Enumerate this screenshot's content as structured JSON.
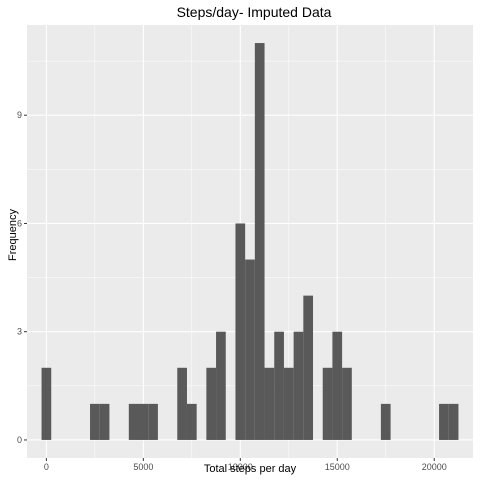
{
  "chart_data": {
    "type": "bar",
    "title": "Steps/day- Imputed Data",
    "xlabel": "Total steps per day",
    "ylabel": "Frequency",
    "xlim": [
      -1000,
      22000
    ],
    "ylim": [
      -0.5,
      11.5
    ],
    "x_ticks": [
      0,
      5000,
      10000,
      15000,
      20000
    ],
    "x_tick_labels": [
      "0",
      "5000",
      "10000",
      "15000",
      "20000"
    ],
    "y_ticks": [
      0,
      3,
      6,
      9
    ],
    "y_tick_labels": [
      "0",
      "3",
      "6",
      "9"
    ],
    "bin_width": 500,
    "bins": [
      {
        "x0": -250,
        "count": 2
      },
      {
        "x0": 2250,
        "count": 1
      },
      {
        "x0": 2750,
        "count": 1
      },
      {
        "x0": 4250,
        "count": 1
      },
      {
        "x0": 4750,
        "count": 1
      },
      {
        "x0": 5250,
        "count": 1
      },
      {
        "x0": 6750,
        "count": 2
      },
      {
        "x0": 7250,
        "count": 1
      },
      {
        "x0": 8250,
        "count": 2
      },
      {
        "x0": 8750,
        "count": 3
      },
      {
        "x0": 9750,
        "count": 6
      },
      {
        "x0": 10250,
        "count": 5
      },
      {
        "x0": 10750,
        "count": 11
      },
      {
        "x0": 11250,
        "count": 2
      },
      {
        "x0": 11750,
        "count": 3
      },
      {
        "x0": 12250,
        "count": 2
      },
      {
        "x0": 12750,
        "count": 3
      },
      {
        "x0": 13250,
        "count": 4
      },
      {
        "x0": 14250,
        "count": 2
      },
      {
        "x0": 14750,
        "count": 3
      },
      {
        "x0": 15250,
        "count": 2
      },
      {
        "x0": 17250,
        "count": 1
      },
      {
        "x0": 20250,
        "count": 1
      },
      {
        "x0": 20750,
        "count": 1
      }
    ],
    "grid": true,
    "colors": {
      "panel_background": "#ebebeb",
      "grid_major": "#ffffff",
      "bar_fill": "#595959"
    }
  }
}
